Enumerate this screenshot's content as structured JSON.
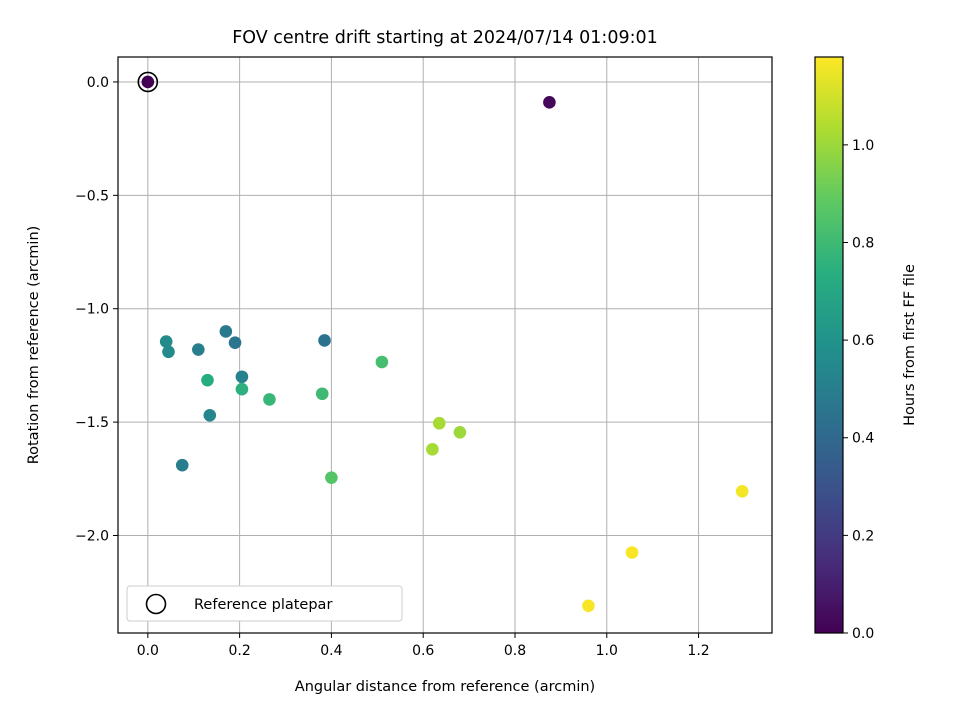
{
  "chart_data": {
    "type": "scatter",
    "title": "FOV centre drift starting at 2024/07/14 01:09:01",
    "xlabel": "Angular distance from reference (arcmin)",
    "ylabel": "Rotation from reference (arcmin)",
    "xlim": [
      -0.065,
      1.36
    ],
    "ylim": [
      -2.43,
      0.11
    ],
    "xticks": [
      0.0,
      0.2,
      0.4,
      0.6,
      0.8,
      1.0,
      1.2
    ],
    "xtick_labels": [
      "0.0",
      "0.2",
      "0.4",
      "0.6",
      "0.8",
      "1.0",
      "1.2"
    ],
    "yticks": [
      0.0,
      -0.5,
      -1.0,
      -1.5,
      -2.0
    ],
    "ytick_labels": [
      "0.0",
      "−0.5",
      "−1.0",
      "−1.5",
      "−2.0"
    ],
    "grid": true,
    "legend": {
      "placement": "lower-left",
      "label": "Reference platepar"
    },
    "colorbar": {
      "label": "Hours from first FF file",
      "colormap": "viridis",
      "min": 0.0,
      "max": 1.18,
      "ticks": [
        0.0,
        0.2,
        0.4,
        0.6,
        0.8,
        1.0
      ],
      "tick_labels": [
        "0.0",
        "0.2",
        "0.4",
        "0.6",
        "0.8",
        "1.0"
      ]
    },
    "reference_point": {
      "x": 0.0,
      "y": 0.0,
      "hours": 0.0
    },
    "points": [
      {
        "x": 0.0,
        "y": 0.0,
        "hours": 0.0
      },
      {
        "x": 0.875,
        "y": -0.09,
        "hours": 0.02
      },
      {
        "x": 0.04,
        "y": -1.145,
        "hours": 0.56
      },
      {
        "x": 0.045,
        "y": -1.19,
        "hours": 0.56
      },
      {
        "x": 0.11,
        "y": -1.18,
        "hours": 0.5
      },
      {
        "x": 0.17,
        "y": -1.1,
        "hours": 0.48
      },
      {
        "x": 0.19,
        "y": -1.15,
        "hours": 0.46
      },
      {
        "x": 0.385,
        "y": -1.14,
        "hours": 0.44
      },
      {
        "x": 0.205,
        "y": -1.3,
        "hours": 0.52
      },
      {
        "x": 0.13,
        "y": -1.315,
        "hours": 0.72
      },
      {
        "x": 0.135,
        "y": -1.47,
        "hours": 0.54
      },
      {
        "x": 0.075,
        "y": -1.69,
        "hours": 0.5
      },
      {
        "x": 0.205,
        "y": -1.355,
        "hours": 0.75
      },
      {
        "x": 0.265,
        "y": -1.4,
        "hours": 0.78
      },
      {
        "x": 0.38,
        "y": -1.375,
        "hours": 0.8
      },
      {
        "x": 0.51,
        "y": -1.235,
        "hours": 0.82
      },
      {
        "x": 0.4,
        "y": -1.745,
        "hours": 0.86
      },
      {
        "x": 0.635,
        "y": -1.505,
        "hours": 1.02
      },
      {
        "x": 0.68,
        "y": -1.545,
        "hours": 1.0
      },
      {
        "x": 0.62,
        "y": -1.62,
        "hours": 1.02
      },
      {
        "x": 1.295,
        "y": -1.805,
        "hours": 1.16
      },
      {
        "x": 1.055,
        "y": -2.075,
        "hours": 1.17
      },
      {
        "x": 0.96,
        "y": -2.31,
        "hours": 1.17
      }
    ]
  }
}
